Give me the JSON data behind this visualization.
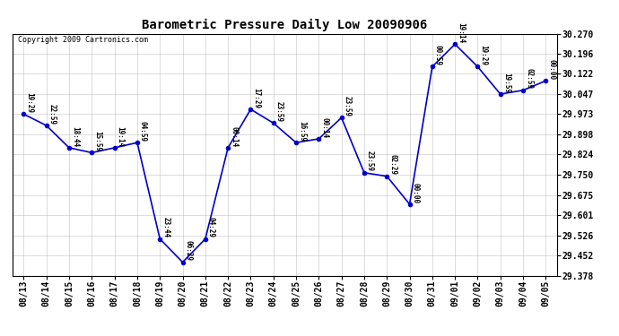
{
  "title": "Barometric Pressure Daily Low 20090906",
  "copyright": "Copyright 2009 Cartronics.com",
  "line_color": "#0000CC",
  "marker_color": "#0000CC",
  "bg_color": "#FFFFFF",
  "grid_color": "#AAAAAA",
  "dates": [
    "08/13",
    "08/14",
    "08/15",
    "08/16",
    "08/17",
    "08/18",
    "08/19",
    "08/20",
    "08/21",
    "08/22",
    "08/23",
    "08/24",
    "08/25",
    "08/26",
    "08/27",
    "08/28",
    "08/29",
    "08/30",
    "08/31",
    "09/01",
    "09/02",
    "09/03",
    "09/04",
    "09/05"
  ],
  "times": [
    "19:29",
    "22:59",
    "18:44",
    "15:59",
    "19:14",
    "04:59",
    "23:44",
    "06:29",
    "04:29",
    "00:14",
    "17:29",
    "23:59",
    "16:59",
    "00:14",
    "23:59",
    "23:59",
    "02:29",
    "00:00",
    "00:59",
    "19:14",
    "19:29",
    "19:59",
    "02:59",
    "00:00"
  ],
  "values": [
    29.973,
    29.931,
    29.849,
    29.831,
    29.849,
    29.868,
    29.513,
    29.427,
    29.513,
    29.849,
    29.991,
    29.94,
    29.868,
    29.882,
    29.96,
    29.757,
    29.744,
    29.641,
    30.148,
    30.231,
    30.148,
    30.047,
    30.061,
    30.096
  ],
  "ylim_min": 29.378,
  "ylim_max": 30.27,
  "yticks": [
    29.378,
    29.452,
    29.526,
    29.601,
    29.675,
    29.75,
    29.824,
    29.898,
    29.973,
    30.047,
    30.122,
    30.196,
    30.27
  ],
  "title_fontsize": 10,
  "tick_fontsize": 7,
  "label_fontsize": 6
}
